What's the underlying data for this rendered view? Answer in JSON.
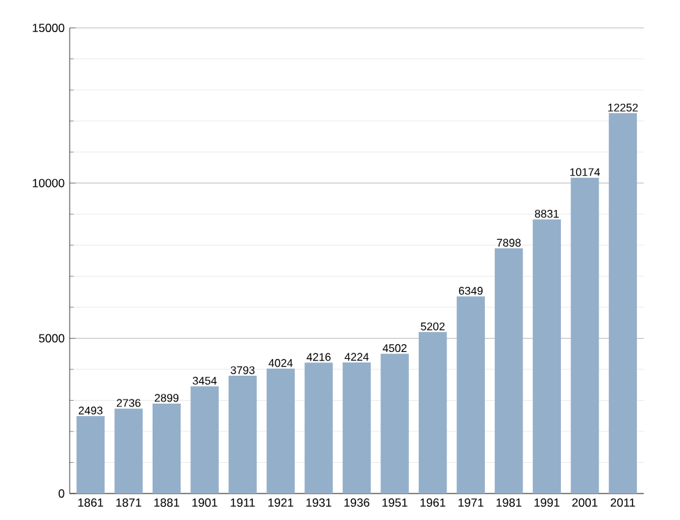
{
  "chart_data": {
    "type": "bar",
    "categories": [
      "1861",
      "1871",
      "1881",
      "1901",
      "1911",
      "1921",
      "1931",
      "1936",
      "1951",
      "1961",
      "1971",
      "1981",
      "1991",
      "2001",
      "2011"
    ],
    "values": [
      2493,
      2736,
      2899,
      3454,
      3793,
      4024,
      4216,
      4224,
      4502,
      5202,
      6349,
      7898,
      8831,
      10174,
      12252
    ],
    "color": "#94afca",
    "ylim": [
      0,
      15000
    ],
    "yticks": [
      0,
      5000,
      10000,
      15000
    ],
    "grid": "y",
    "data_labels": true
  }
}
